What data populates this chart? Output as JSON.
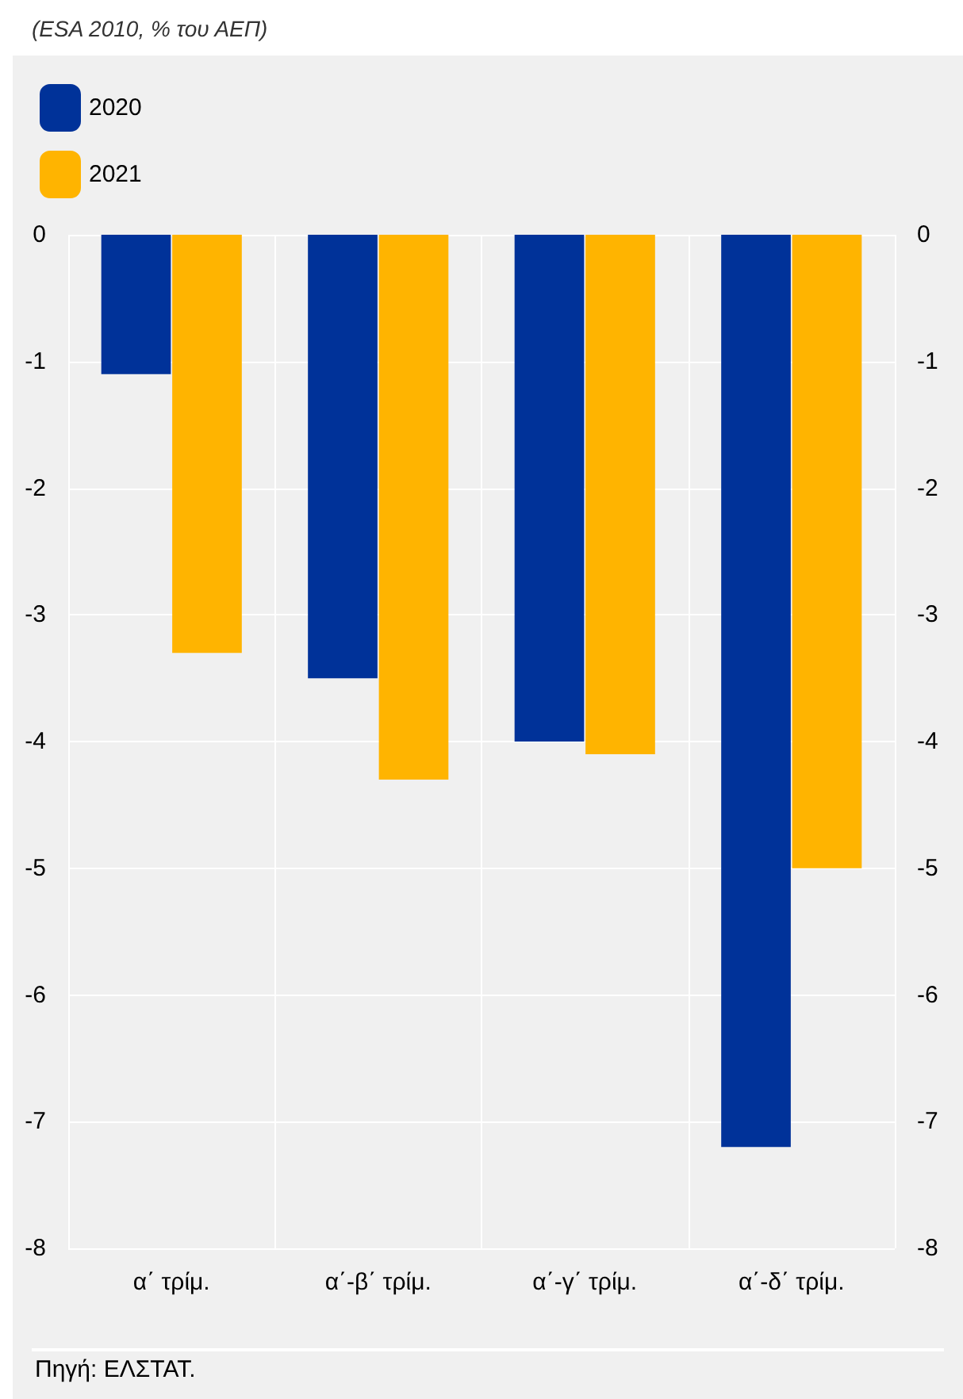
{
  "chart_data": {
    "type": "bar",
    "title": "(ESA 2010, % του ΑΕΠ)",
    "categories": [
      "α΄ τρίμ.",
      "α΄-β΄ τρίμ.",
      "α΄-γ΄ τρίμ.",
      "α΄-δ΄ τρίμ."
    ],
    "series": [
      {
        "name": "2020",
        "color": "#003299",
        "values": [
          -1.1,
          -3.5,
          -4.0,
          -7.2
        ]
      },
      {
        "name": "2021",
        "color": "#ffb400",
        "values": [
          -3.3,
          -4.3,
          -4.1,
          -5.0
        ]
      }
    ],
    "ylim": [
      -8,
      0
    ],
    "yticks": [
      -8,
      -7,
      -6,
      -5,
      -4,
      -3,
      -2,
      -1,
      0
    ],
    "y2lim": [
      -8,
      0
    ],
    "y2ticks": [
      -8,
      -7,
      -6,
      -5,
      -4,
      -3,
      -2,
      -1,
      0
    ],
    "grid": true,
    "legend": "top left",
    "annotations": [
      "Πηγή: ΕΛΣΤΑΤ."
    ]
  }
}
